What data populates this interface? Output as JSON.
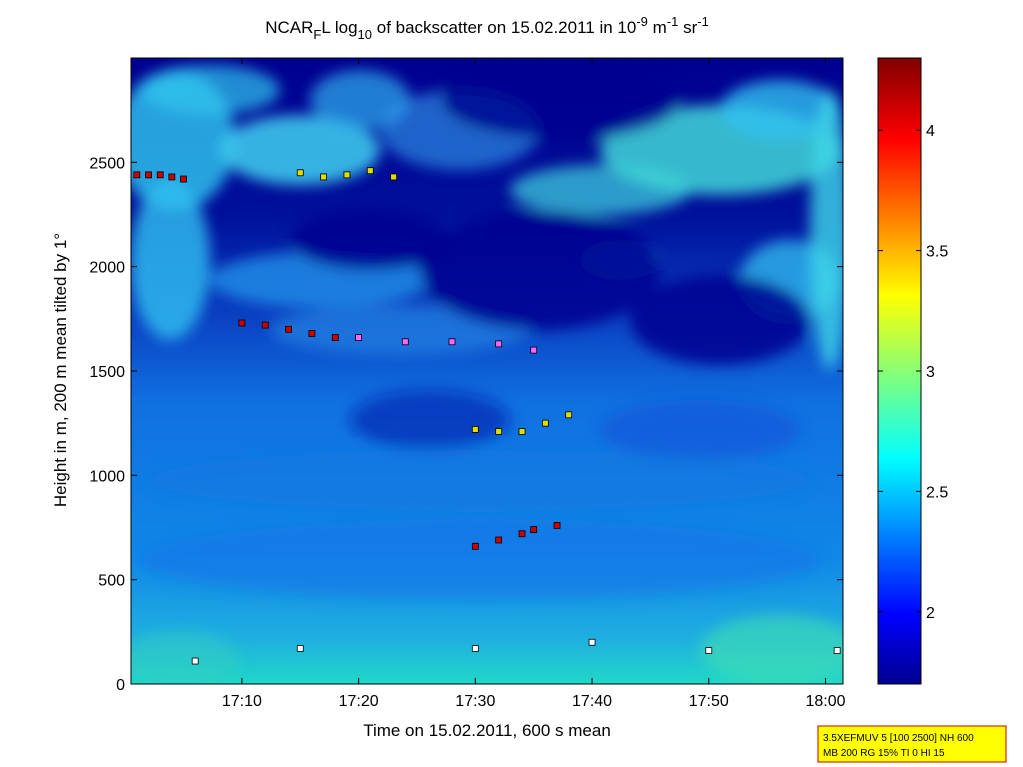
{
  "chart_data": {
    "type": "heatmap",
    "title": {
      "main": "NCAR",
      "sub_f": "F",
      "part2": "L log",
      "sub_10": "10",
      "part3": " of backscatter on 15.02.2011 in 10",
      "sup_m9": "-9",
      "part4": " m",
      "sup_m1": "-1",
      "part5": " sr",
      "sup_m1b": "-1"
    },
    "xlabel": "Time on 15.02.2011, 600 s mean",
    "ylabel": "Height in m, 200 m mean tilted by 1°",
    "xlim": [
      "17:00:30",
      "18:01:30"
    ],
    "ylim": [
      0,
      3000
    ],
    "x_ticks": [
      "17:10",
      "17:20",
      "17:30",
      "17:40",
      "17:50",
      "18:00"
    ],
    "y_ticks": [
      0,
      500,
      1000,
      1500,
      2000,
      2500
    ],
    "colorbar": {
      "range": [
        1.7,
        4.3
      ],
      "ticks": [
        "2",
        "2.5",
        "3",
        "3.5",
        "4"
      ]
    },
    "info_box": {
      "line1": "3.5XEFMUV 5 [100 2500] NH 600",
      "line2": "MB 200 RG 15% TI 0 HI 15"
    },
    "colormap": "jet",
    "background_color": "#00008f",
    "layer_marker_series": [
      {
        "x": [
          "17:01",
          "17:02",
          "17:03",
          "17:04",
          "17:05"
        ],
        "y": [
          2440,
          2440,
          2440,
          2430,
          2420
        ],
        "color": "#cc0000"
      },
      {
        "x": [
          "17:15",
          "17:17",
          "17:19",
          "17:21",
          "17:23"
        ],
        "y": [
          2450,
          2430,
          2440,
          2460,
          2430
        ],
        "color": "#dddd00"
      },
      {
        "x": [
          "17:10",
          "17:12",
          "17:14",
          "17:16",
          "17:18"
        ],
        "y": [
          1730,
          1720,
          1700,
          1680,
          1660
        ],
        "color": "#cc0000"
      },
      {
        "x": [
          "17:20",
          "17:24",
          "17:28",
          "17:32",
          "17:35"
        ],
        "y": [
          1660,
          1640,
          1640,
          1630,
          1600
        ],
        "color": "#ff66ff"
      },
      {
        "x": [
          "17:30",
          "17:32",
          "17:34",
          "17:36",
          "17:38"
        ],
        "y": [
          1220,
          1210,
          1210,
          1250,
          1290
        ],
        "color": "#dddd00"
      },
      {
        "x": [
          "17:30",
          "17:32",
          "17:34",
          "17:35",
          "17:37"
        ],
        "y": [
          660,
          690,
          720,
          740,
          760
        ],
        "color": "#cc0000"
      },
      {
        "x": [
          "17:06",
          "17:15",
          "17:30",
          "17:40",
          "17:50",
          "18:01"
        ],
        "y": [
          110,
          170,
          170,
          200,
          160,
          160
        ],
        "color": "#ffffff"
      }
    ]
  }
}
